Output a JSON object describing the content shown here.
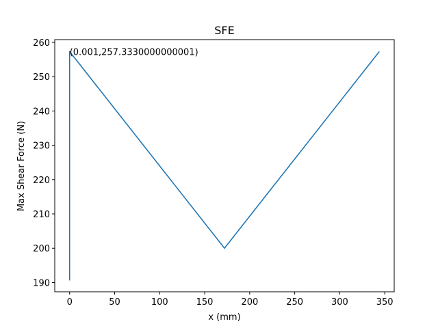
{
  "chart_data": {
    "type": "line",
    "title": "SFE",
    "xlabel": "x (mm)",
    "ylabel": "Max Shear Force (N)",
    "xlim": [
      -16.5,
      360.5
    ],
    "ylim": [
      187.3,
      260.8
    ],
    "xticks": [
      0,
      50,
      100,
      150,
      200,
      250,
      300,
      350
    ],
    "yticks": [
      190,
      200,
      210,
      220,
      230,
      240,
      250,
      260
    ],
    "grid": false,
    "series": [
      {
        "color": "#1f77b4",
        "x": [
          0,
          0.001,
          172,
          344
        ],
        "y": [
          190.6,
          257.333,
          200.0,
          257.333
        ]
      }
    ],
    "annotations": [
      {
        "text": "(0.001,257.3330000000001)",
        "x": 0.001,
        "y": 257.333
      }
    ]
  }
}
